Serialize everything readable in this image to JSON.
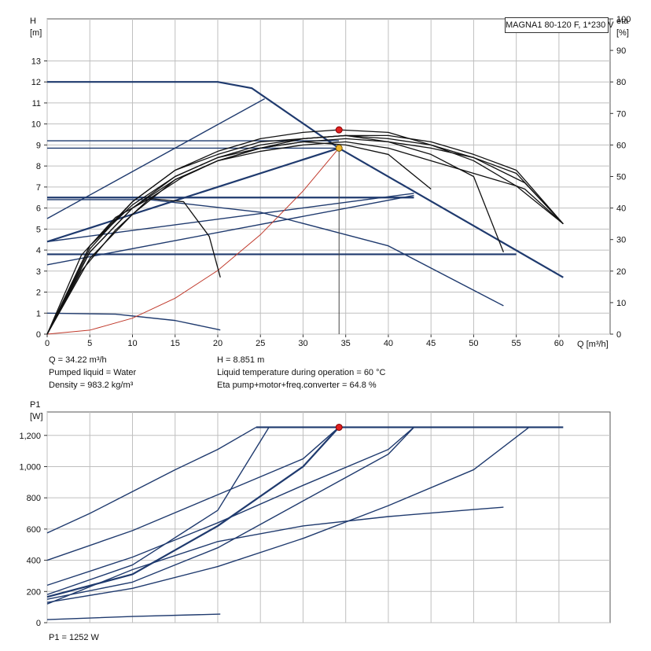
{
  "model_label": "MAGNA1 80-120 F, 1*230 V",
  "top_left_labels": [
    "H",
    "[m]"
  ],
  "top_right_labels": [
    "eta",
    "[%]"
  ],
  "bottom_left_labels": [
    "P1",
    "[W]"
  ],
  "x_unit_label": "Q [m³/h]",
  "info_left": [
    "Q = 34.22 m³/h",
    "Pumped liquid = Water",
    "Density = 983.2 kg/m³"
  ],
  "info_right": [
    "H = 8.851 m",
    "Liquid temperature during operation = 60 °C",
    "Eta pump+motor+freq.converter = 64.8 %"
  ],
  "p1_readout": "P1 = 1252 W",
  "colors": {
    "curve": "#1f3a6e",
    "eta_curve": "#111111",
    "system_curve": "#c0392b",
    "grid": "#bfbfbf",
    "operating_point": "#f0b429",
    "eta_point": "#e02020"
  },
  "chart_data": [
    {
      "type": "line",
      "title": "",
      "xlabel": "Q [m³/h]",
      "ylabel": "H [m]",
      "y2label": "eta [%]",
      "xlim": [
        0,
        66
      ],
      "ylim": [
        0,
        15
      ],
      "y2lim": [
        0,
        100
      ],
      "x_ticks": [
        0,
        5,
        10,
        15,
        20,
        25,
        30,
        35,
        40,
        45,
        50,
        55,
        60
      ],
      "y_ticks": [
        0,
        1,
        2,
        3,
        4,
        5,
        6,
        7,
        8,
        9,
        10,
        11,
        12,
        13
      ],
      "y2_ticks": [
        0,
        10,
        20,
        30,
        40,
        50,
        60,
        70,
        80,
        90,
        100
      ],
      "grid": true,
      "head_curves": [
        {
          "points": [
            [
              0,
              12.0
            ],
            [
              20,
              12.0
            ],
            [
              24,
              11.7
            ],
            [
              34.2,
              8.85
            ],
            [
              60.5,
              2.7
            ]
          ],
          "bold": true
        },
        {
          "points": [
            [
              0,
              9.2
            ],
            [
              34.2,
              9.2
            ]
          ],
          "bold": false
        },
        {
          "points": [
            [
              0,
              8.85
            ],
            [
              34.2,
              8.85
            ]
          ],
          "bold": false
        },
        {
          "points": [
            [
              0,
              6.5
            ],
            [
              43,
              6.5
            ]
          ],
          "bold": true
        },
        {
          "points": [
            [
              0,
              3.8
            ],
            [
              55,
              3.8
            ]
          ],
          "bold": true
        },
        {
          "points": [
            [
              0,
              5.5
            ],
            [
              25.5,
              11.2
            ]
          ],
          "bold": false
        },
        {
          "points": [
            [
              0,
              4.4
            ],
            [
              34.2,
              8.85
            ]
          ],
          "bold": true
        },
        {
          "points": [
            [
              0,
              4.4
            ],
            [
              43,
              6.7
            ]
          ],
          "bold": false
        },
        {
          "points": [
            [
              0,
              3.3
            ],
            [
              43,
              6.6
            ]
          ],
          "bold": false
        },
        {
          "points": [
            [
              0,
              6.4
            ],
            [
              12,
              6.4
            ],
            [
              25,
              5.8
            ],
            [
              40,
              4.2
            ],
            [
              53.5,
              1.35
            ]
          ],
          "bold": false
        },
        {
          "points": [
            [
              0,
              1.0
            ],
            [
              8,
              0.95
            ],
            [
              15,
              0.65
            ],
            [
              20.3,
              0.2
            ]
          ],
          "bold": false
        }
      ],
      "eta_curves": [
        {
          "points": [
            [
              0,
              0
            ],
            [
              5,
              26
            ],
            [
              10,
              40
            ],
            [
              15,
              50
            ],
            [
              20,
              56
            ],
            [
              25,
              60
            ],
            [
              30,
              62
            ],
            [
              35,
              63
            ],
            [
              40,
              63
            ],
            [
              45,
              61
            ],
            [
              50,
              57
            ],
            [
              55,
              52
            ],
            [
              60.5,
              35
            ]
          ]
        },
        {
          "points": [
            [
              0,
              0
            ],
            [
              5,
              24
            ],
            [
              10,
              38
            ],
            [
              15,
              49
            ],
            [
              20,
              55
            ],
            [
              25,
              59
            ],
            [
              30,
              62
            ],
            [
              35,
              63
            ],
            [
              40,
              62
            ],
            [
              45,
              60
            ],
            [
              50,
              56
            ],
            [
              56,
              48
            ],
            [
              60.5,
              35
            ]
          ]
        },
        {
          "points": [
            [
              0,
              0
            ],
            [
              4,
              20
            ],
            [
              8,
              33
            ],
            [
              12,
              43
            ],
            [
              16,
              50
            ],
            [
              20,
              55
            ],
            [
              25,
              59
            ],
            [
              30,
              61
            ],
            [
              35,
              62
            ],
            [
              40,
              61
            ],
            [
              45,
              59
            ],
            [
              50,
              56
            ],
            [
              55,
              51
            ],
            [
              60.5,
              35
            ]
          ]
        },
        {
          "points": [
            [
              0,
              0
            ],
            [
              5,
              27
            ],
            [
              10,
              42
            ],
            [
              15,
              52
            ],
            [
              20,
              58
            ],
            [
              25,
              62
            ],
            [
              30,
              64
            ],
            [
              34.2,
              64.8
            ],
            [
              40,
              64
            ],
            [
              45,
              60
            ],
            [
              50,
              55
            ],
            [
              55,
              47
            ],
            [
              60.5,
              35
            ]
          ]
        },
        {
          "points": [
            [
              0,
              0
            ],
            [
              5,
              28
            ],
            [
              10,
              42
            ],
            [
              15,
              52
            ],
            [
              20,
              57
            ],
            [
              25,
              61
            ],
            [
              30,
              62
            ],
            [
              35,
              63
            ],
            [
              40,
              61
            ],
            [
              45,
              57
            ],
            [
              50,
              50
            ],
            [
              53.5,
              26
            ]
          ]
        },
        {
          "points": [
            [
              0,
              0
            ],
            [
              5,
              28
            ],
            [
              10,
              41
            ],
            [
              15,
              50
            ],
            [
              20,
              56
            ],
            [
              25,
              59
            ],
            [
              30,
              61
            ],
            [
              35,
              60
            ],
            [
              40,
              57
            ],
            [
              45,
              46
            ]
          ]
        },
        {
          "points": [
            [
              0,
              0
            ],
            [
              5,
              26
            ],
            [
              10,
              40
            ],
            [
              15,
              49
            ],
            [
              20,
              55
            ],
            [
              25,
              58
            ],
            [
              30,
              60
            ],
            [
              35,
              61
            ],
            [
              40,
              59
            ],
            [
              45,
              55
            ],
            [
              55,
              47
            ],
            [
              56,
              46
            ],
            [
              60.5,
              35
            ]
          ]
        },
        {
          "points": [
            [
              0,
              0
            ],
            [
              4,
              25
            ],
            [
              8,
              37
            ],
            [
              12,
              43
            ],
            [
              16,
              42
            ],
            [
              19,
              31
            ],
            [
              20.3,
              18
            ]
          ]
        }
      ],
      "system_curve": {
        "points": [
          [
            0,
            0
          ],
          [
            5,
            0.19
          ],
          [
            10,
            0.76
          ],
          [
            15,
            1.71
          ],
          [
            20,
            3.03
          ],
          [
            25,
            4.73
          ],
          [
            30,
            6.81
          ],
          [
            34.2,
            8.85
          ]
        ]
      },
      "operating_point": {
        "q": 34.22,
        "h": 8.851
      },
      "eta_point": {
        "q": 34.22,
        "eta": 64.8
      }
    },
    {
      "type": "line",
      "title": "",
      "xlabel": "Q [m³/h]",
      "ylabel": "P1 [W]",
      "xlim": [
        0,
        66
      ],
      "ylim": [
        0,
        1350
      ],
      "y_ticks": [
        0,
        200,
        400,
        600,
        800,
        1000,
        1200
      ],
      "y_tick_labels": [
        "0",
        "200",
        "400",
        "600",
        "800",
        "1,000",
        "1,200"
      ],
      "grid": true,
      "power_curves": [
        {
          "points": [
            [
              24.5,
              1252
            ],
            [
              60.5,
              1252
            ]
          ],
          "bold": true
        },
        {
          "points": [
            [
              0,
              575
            ],
            [
              5,
              700
            ],
            [
              10,
              840
            ],
            [
              15,
              980
            ],
            [
              20,
              1110
            ],
            [
              24.5,
              1252
            ]
          ],
          "bold": false
        },
        {
          "points": [
            [
              0,
              400
            ],
            [
              10,
              590
            ],
            [
              20,
              820
            ],
            [
              30,
              1050
            ],
            [
              34.2,
              1252
            ]
          ],
          "bold": false
        },
        {
          "points": [
            [
              0,
              180
            ],
            [
              10,
              370
            ],
            [
              20,
              720
            ],
            [
              26,
              1252
            ]
          ],
          "bold": false
        },
        {
          "points": [
            [
              0,
              165
            ],
            [
              10,
              310
            ],
            [
              20,
              620
            ],
            [
              30,
              1000
            ],
            [
              34.2,
              1252
            ]
          ],
          "bold": true
        },
        {
          "points": [
            [
              0,
              150
            ],
            [
              10,
              260
            ],
            [
              20,
              480
            ],
            [
              30,
              780
            ],
            [
              40,
              1080
            ],
            [
              43,
              1252
            ]
          ],
          "bold": false
        },
        {
          "points": [
            [
              0,
              240
            ],
            [
              10,
              420
            ],
            [
              20,
              640
            ],
            [
              30,
              880
            ],
            [
              40,
              1110
            ],
            [
              43,
              1252
            ]
          ],
          "bold": false
        },
        {
          "points": [
            [
              0,
              130
            ],
            [
              10,
              220
            ],
            [
              20,
              360
            ],
            [
              30,
              540
            ],
            [
              40,
              750
            ],
            [
              50,
              980
            ],
            [
              56.5,
              1252
            ]
          ],
          "bold": false
        },
        {
          "points": [
            [
              0,
              120
            ],
            [
              10,
              340
            ],
            [
              20,
              520
            ],
            [
              30,
              620
            ],
            [
              40,
              680
            ],
            [
              50,
              725
            ],
            [
              53.5,
              740
            ]
          ],
          "bold": false
        },
        {
          "points": [
            [
              0,
              20
            ],
            [
              10,
              40
            ],
            [
              20.3,
              55
            ]
          ],
          "bold": false
        }
      ],
      "operating_point": {
        "q": 34.22,
        "p1": 1252
      }
    }
  ]
}
